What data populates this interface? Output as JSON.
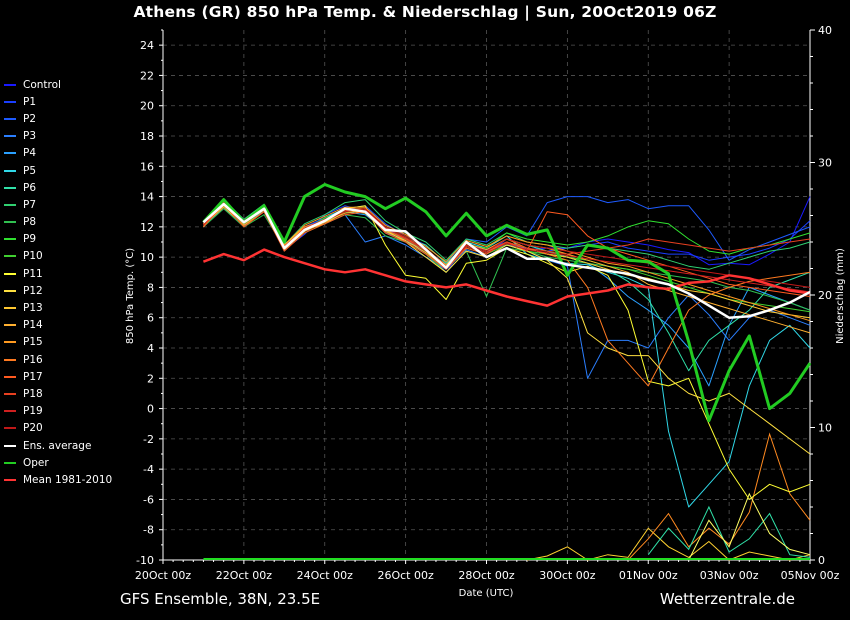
{
  "title": "Athens  (GR)  850 hPa Temp. & Niederschlag | Sun, 20Oct2019 06Z",
  "footer": {
    "left": "GFS Ensemble, 38N, 23.5E",
    "right": "Wetterzentrale.de"
  },
  "colors": {
    "background": "#000000",
    "grid": "#555555",
    "members": [
      "#1a1aff",
      "#1a3fff",
      "#1e5bff",
      "#2b7fff",
      "#2aa0ff",
      "#30d8e8",
      "#30e0a8",
      "#30d070",
      "#30c050",
      "#30e030",
      "#40d030",
      "#ffff33",
      "#ffe040",
      "#ffc830",
      "#ffb030",
      "#ff9a20",
      "#ff7a20",
      "#ff5a20",
      "#e84020",
      "#d02020",
      "#c01818"
    ],
    "ens_average": "#ffffff",
    "oper": "#22cc22",
    "mean_1981_2010": "#ff3333"
  },
  "legend": [
    {
      "label": "Control",
      "color": "#1a1aff"
    },
    {
      "label": "P1",
      "color": "#1a3fff"
    },
    {
      "label": "P2",
      "color": "#1e5bff"
    },
    {
      "label": "P3",
      "color": "#2b7fff"
    },
    {
      "label": "P4",
      "color": "#2aa0ff"
    },
    {
      "label": "P5",
      "color": "#30d8e8"
    },
    {
      "label": "P6",
      "color": "#30e0a8"
    },
    {
      "label": "P7",
      "color": "#30d070"
    },
    {
      "label": "P8",
      "color": "#30c050"
    },
    {
      "label": "P9",
      "color": "#30e030"
    },
    {
      "label": "P10",
      "color": "#40d030"
    },
    {
      "label": "P11",
      "color": "#ffff33"
    },
    {
      "label": "P12",
      "color": "#ffe040"
    },
    {
      "label": "P13",
      "color": "#ffc830"
    },
    {
      "label": "P14",
      "color": "#ffb030"
    },
    {
      "label": "P15",
      "color": "#ff9a20"
    },
    {
      "label": "P16",
      "color": "#ff7a20"
    },
    {
      "label": "P17",
      "color": "#ff5a20"
    },
    {
      "label": "P18",
      "color": "#e84020"
    },
    {
      "label": "P19",
      "color": "#d02020"
    },
    {
      "label": "P20",
      "color": "#c01818"
    },
    {
      "label": "Ens. average",
      "color": "#ffffff"
    },
    {
      "label": "Oper",
      "color": "#22cc22"
    },
    {
      "label": "Mean 1981-2010",
      "color": "#ff3333"
    }
  ],
  "chart_data": {
    "type": "line",
    "xlabel": "Date (UTC)",
    "ylabel": "850 hPa Temp. (°C)",
    "y2label": "Niederschlag (mm)",
    "x_unit": "days since 20Oct 00z",
    "x_ticks": [
      "20Oct 00z",
      "22Oct 00z",
      "24Oct 00z",
      "26Oct 00z",
      "28Oct 00z",
      "30Oct 00z",
      "01Nov 00z",
      "03Nov 00z",
      "05Nov 00z"
    ],
    "xlim": [
      0,
      16
    ],
    "ylim": [
      -10,
      25
    ],
    "y_ticks": [
      -10,
      -8,
      -6,
      -4,
      -2,
      0,
      2,
      4,
      6,
      8,
      10,
      12,
      14,
      16,
      18,
      20,
      22,
      24
    ],
    "y2lim": [
      0,
      40
    ],
    "y2_ticks": [
      0,
      10,
      20,
      30,
      40
    ],
    "grid": true,
    "legend_position": "left",
    "ens_average": {
      "x": [
        1.0,
        1.5,
        2.0,
        2.5,
        3.0,
        3.5,
        4.0,
        4.5,
        5.0,
        5.5,
        6.0,
        6.5,
        7.0,
        7.5,
        8.0,
        8.5,
        9.0,
        9.5,
        10.0,
        10.5,
        11.0,
        11.5,
        12.0,
        12.5,
        13.0,
        13.5,
        14.0,
        14.5,
        15.0,
        15.5,
        16.0
      ],
      "y": [
        12.3,
        13.5,
        12.3,
        13.2,
        10.6,
        11.8,
        12.4,
        13.2,
        13.0,
        11.8,
        11.7,
        10.5,
        9.3,
        11.0,
        10.0,
        10.6,
        9.9,
        9.9,
        9.5,
        9.3,
        9.1,
        8.9,
        8.5,
        8.2,
        7.6,
        6.8,
        6.0,
        6.1,
        6.5,
        7.0,
        7.7
      ]
    },
    "oper": {
      "x": [
        1.0,
        1.5,
        2.0,
        2.5,
        3.0,
        3.5,
        4.0,
        4.5,
        5.0,
        5.5,
        6.0,
        6.5,
        7.0,
        7.5,
        8.0,
        8.5,
        9.0,
        9.5,
        10.0,
        10.5,
        11.0,
        11.5,
        12.0,
        12.5,
        13.0,
        13.5,
        14.0,
        14.5,
        15.0,
        15.5,
        16.0
      ],
      "y": [
        12.3,
        13.8,
        12.3,
        13.4,
        11.0,
        14.0,
        14.8,
        14.3,
        14.0,
        13.2,
        13.9,
        13.0,
        11.4,
        12.9,
        11.4,
        12.1,
        11.5,
        11.8,
        8.8,
        10.8,
        10.6,
        9.8,
        9.7,
        8.9,
        4.4,
        -0.8,
        2.5,
        4.8,
        0.0,
        1.0,
        3.0
      ]
    },
    "mean_1981_2010": {
      "x": [
        1.0,
        1.5,
        2.0,
        2.5,
        3.0,
        3.5,
        4.0,
        4.5,
        5.0,
        5.5,
        6.0,
        6.5,
        7.0,
        7.5,
        8.0,
        8.5,
        9.0,
        9.5,
        10.0,
        10.5,
        11.0,
        11.5,
        12.0,
        12.5,
        13.0,
        13.5,
        14.0,
        14.5,
        15.0,
        15.5,
        16.0
      ],
      "y": [
        9.7,
        10.2,
        9.8,
        10.5,
        10.0,
        9.6,
        9.2,
        9.0,
        9.2,
        8.8,
        8.4,
        8.2,
        8.0,
        8.2,
        7.8,
        7.4,
        7.1,
        6.8,
        7.4,
        7.6,
        7.8,
        8.2,
        8.0,
        7.9,
        8.3,
        8.4,
        8.8,
        8.6,
        8.2,
        7.8,
        7.6
      ]
    },
    "members": [
      {
        "name": "Control",
        "y": [
          12.2,
          13.5,
          12.2,
          13.0,
          10.8,
          12.0,
          12.5,
          13.0,
          13.2,
          12.0,
          11.0,
          10.5,
          9.0,
          10.8,
          10.5,
          11.0,
          10.5,
          10.6,
          10.6,
          11.0,
          11.2,
          11.0,
          10.8,
          10.5,
          10.3,
          9.5,
          9.6,
          9.5,
          10.2,
          11.0,
          14.0
        ]
      },
      {
        "name": "P1",
        "y": [
          12.0,
          13.4,
          12.0,
          13.2,
          10.5,
          11.5,
          12.8,
          13.4,
          13.0,
          11.6,
          11.2,
          10.2,
          9.2,
          10.6,
          10.2,
          11.2,
          10.8,
          10.4,
          10.6,
          10.8,
          11.0,
          10.6,
          10.4,
          10.2,
          10.2,
          9.8,
          10.0,
          10.2,
          10.6,
          11.2,
          12.4
        ]
      },
      {
        "name": "P2",
        "y": [
          12.3,
          13.6,
          12.4,
          13.1,
          10.7,
          12.0,
          12.6,
          13.2,
          13.4,
          12.2,
          11.4,
          10.8,
          9.6,
          11.2,
          11.0,
          12.0,
          11.4,
          13.6,
          14.0,
          14.0,
          13.6,
          13.8,
          13.2,
          13.4,
          13.4,
          11.8,
          9.8,
          10.5,
          11.0,
          11.5,
          12.0
        ]
      },
      {
        "name": "P3",
        "y": [
          12.1,
          13.2,
          12.2,
          13.0,
          10.6,
          11.8,
          12.2,
          12.8,
          11.0,
          11.4,
          10.8,
          10.0,
          9.2,
          10.5,
          10.0,
          10.8,
          10.4,
          9.8,
          9.4,
          2.0,
          4.5,
          4.5,
          4.0,
          6.0,
          7.5,
          6.2,
          4.5,
          6.0,
          6.5,
          6.0,
          5.5
        ]
      },
      {
        "name": "P4",
        "y": [
          12.0,
          13.5,
          12.1,
          13.3,
          10.4,
          11.9,
          12.4,
          13.0,
          12.8,
          11.8,
          11.2,
          10.4,
          9.4,
          10.8,
          10.4,
          10.8,
          10.6,
          10.2,
          10.0,
          9.6,
          8.6,
          7.4,
          6.5,
          5.5,
          4.0,
          1.5,
          5.5,
          8.0,
          7.5,
          7.0,
          6.5
        ]
      },
      {
        "name": "P5",
        "y": [
          12.2,
          13.7,
          12.3,
          13.4,
          10.9,
          11.7,
          12.6,
          13.2,
          13.0,
          11.6,
          11.0,
          10.5,
          9.5,
          11.0,
          10.6,
          11.4,
          10.2,
          9.8,
          9.6,
          9.5,
          9.0,
          8.6,
          8.0,
          -1.5,
          -6.5,
          -5.0,
          -3.5,
          1.5,
          4.5,
          5.5,
          4.0
        ]
      },
      {
        "name": "P6",
        "y": [
          12.3,
          13.5,
          12.2,
          13.1,
          10.6,
          11.9,
          12.3,
          13.0,
          13.2,
          12.0,
          11.2,
          10.8,
          9.6,
          10.8,
          10.4,
          11.2,
          10.8,
          10.4,
          10.0,
          9.6,
          9.2,
          8.4,
          7.2,
          5.0,
          2.5,
          4.5,
          5.5,
          6.5,
          8.0,
          8.5,
          9.0
        ]
      },
      {
        "name": "P7",
        "y": [
          12.4,
          13.8,
          12.5,
          13.5,
          10.8,
          12.2,
          12.8,
          13.6,
          13.8,
          12.4,
          11.6,
          11.0,
          9.8,
          11.2,
          10.8,
          11.6,
          11.0,
          10.8,
          10.6,
          10.8,
          10.6,
          10.4,
          10.2,
          9.8,
          9.4,
          9.2,
          9.6,
          10.0,
          10.4,
          10.6,
          11.0
        ]
      },
      {
        "name": "P8",
        "y": [
          12.0,
          13.2,
          12.0,
          12.8,
          10.6,
          11.6,
          12.2,
          12.8,
          12.6,
          11.4,
          11.0,
          10.2,
          9.0,
          10.4,
          7.4,
          10.6,
          10.4,
          10.0,
          9.8,
          9.6,
          9.4,
          9.2,
          9.0,
          8.8,
          8.6,
          8.4,
          8.0,
          7.8,
          7.4,
          7.0,
          6.5
        ]
      },
      {
        "name": "P9",
        "y": [
          12.2,
          13.6,
          12.4,
          13.3,
          10.7,
          11.8,
          12.6,
          13.0,
          13.0,
          12.0,
          11.4,
          10.6,
          9.4,
          10.8,
          10.6,
          11.6,
          11.2,
          11.0,
          10.8,
          11.0,
          11.4,
          12.0,
          12.4,
          12.2,
          11.2,
          10.4,
          10.2,
          10.6,
          10.8,
          11.2,
          11.6
        ]
      },
      {
        "name": "P10",
        "y": [
          12.1,
          13.4,
          12.1,
          13.2,
          10.6,
          11.8,
          12.4,
          13.0,
          13.0,
          11.8,
          11.2,
          10.4,
          9.2,
          10.6,
          10.2,
          10.8,
          10.4,
          10.2,
          10.0,
          9.8,
          9.4,
          9.2,
          8.8,
          8.4,
          8.0,
          7.6,
          7.2,
          7.0,
          6.8,
          6.6,
          6.4
        ]
      },
      {
        "name": "P11",
        "y": [
          12.3,
          13.5,
          12.3,
          13.4,
          10.8,
          12.0,
          12.4,
          13.2,
          13.4,
          10.8,
          8.8,
          8.6,
          7.2,
          9.6,
          9.8,
          10.6,
          10.2,
          9.6,
          9.0,
          9.4,
          8.8,
          6.5,
          1.8,
          1.5,
          2.0,
          -1.0,
          -4.0,
          -6.0,
          -5.0,
          -5.5,
          -5.0
        ]
      },
      {
        "name": "P12",
        "y": [
          12.0,
          13.6,
          12.2,
          13.2,
          10.6,
          11.8,
          12.2,
          13.0,
          13.2,
          11.8,
          11.0,
          10.0,
          9.0,
          10.4,
          10.0,
          10.8,
          10.4,
          9.8,
          8.6,
          5.0,
          4.0,
          3.5,
          3.5,
          2.0,
          1.0,
          0.5,
          1.0,
          0.0,
          -1.0,
          -2.0,
          -3.0
        ]
      },
      {
        "name": "P13",
        "y": [
          12.2,
          13.4,
          12.4,
          13.3,
          10.7,
          11.9,
          12.5,
          13.1,
          12.9,
          11.7,
          11.1,
          10.3,
          9.3,
          10.7,
          10.3,
          11.0,
          10.6,
          10.2,
          10.0,
          9.6,
          9.2,
          8.8,
          8.6,
          8.2,
          7.8,
          7.6,
          7.2,
          6.8,
          6.4,
          6.2,
          6.0
        ]
      },
      {
        "name": "P14",
        "y": [
          12.1,
          13.3,
          12.1,
          13.0,
          10.5,
          11.7,
          12.3,
          12.9,
          13.1,
          11.9,
          11.3,
          10.5,
          9.5,
          10.9,
          10.5,
          11.2,
          10.8,
          10.6,
          10.2,
          9.8,
          9.4,
          9.0,
          8.2,
          7.8,
          7.4,
          7.0,
          6.6,
          6.2,
          5.8,
          5.4,
          5.0
        ]
      },
      {
        "name": "P15",
        "y": [
          12.3,
          13.7,
          12.3,
          13.1,
          10.8,
          12.1,
          12.7,
          13.3,
          13.3,
          12.1,
          11.5,
          10.7,
          9.7,
          11.1,
          10.7,
          11.4,
          11.0,
          10.8,
          10.4,
          10.0,
          9.6,
          9.4,
          9.0,
          8.6,
          8.2,
          7.8,
          7.4,
          7.0,
          6.6,
          6.2,
          5.8
        ]
      },
      {
        "name": "P16",
        "y": [
          12.2,
          13.6,
          12.4,
          13.4,
          10.6,
          12.0,
          12.4,
          13.2,
          13.2,
          11.8,
          11.2,
          10.6,
          9.4,
          10.8,
          10.4,
          11.2,
          10.6,
          10.2,
          9.8,
          8.0,
          4.5,
          3.0,
          1.5,
          4.0,
          6.5,
          7.5,
          8.0,
          8.4,
          8.6,
          8.8,
          9.0
        ]
      },
      {
        "name": "P17",
        "y": [
          12.0,
          13.5,
          12.0,
          13.0,
          10.4,
          11.6,
          12.2,
          12.8,
          13.0,
          11.6,
          11.0,
          10.2,
          9.2,
          10.6,
          10.2,
          11.0,
          10.4,
          13.0,
          12.8,
          11.4,
          10.6,
          10.2,
          9.8,
          9.4,
          9.0,
          8.6,
          8.2,
          8.0,
          7.8,
          7.6,
          7.4
        ]
      },
      {
        "name": "P18",
        "y": [
          12.2,
          13.5,
          12.2,
          13.2,
          10.6,
          11.8,
          12.4,
          13.0,
          13.2,
          12.0,
          11.2,
          10.4,
          9.4,
          10.8,
          10.4,
          11.0,
          10.6,
          10.4,
          10.2,
          10.4,
          10.6,
          10.8,
          11.2,
          11.0,
          10.8,
          10.6,
          10.4,
          10.6,
          10.8,
          11.0,
          11.2
        ]
      },
      {
        "name": "P19",
        "y": [
          12.1,
          13.6,
          12.3,
          13.3,
          10.7,
          11.9,
          12.5,
          13.1,
          13.1,
          11.9,
          11.3,
          10.5,
          9.3,
          10.7,
          10.3,
          10.9,
          10.5,
          10.3,
          10.1,
          9.9,
          9.7,
          9.5,
          9.3,
          9.1,
          8.9,
          8.7,
          8.5,
          8.3,
          8.1,
          7.9,
          7.7
        ]
      },
      {
        "name": "P20",
        "y": [
          12.3,
          13.5,
          12.3,
          13.2,
          10.6,
          11.8,
          12.4,
          13.0,
          13.2,
          12.0,
          11.4,
          10.6,
          9.4,
          10.8,
          10.4,
          11.2,
          10.8,
          10.6,
          10.4,
          10.2,
          10.0,
          9.8,
          9.6,
          9.4,
          9.2,
          9.0,
          8.8,
          8.6,
          8.4,
          8.2,
          8.0
        ]
      }
    ],
    "precipitation_note": "Niederschlag (mm) shown as spikes along bottom axis",
    "precipitation_members": [
      {
        "x": [
          9.0,
          9.5,
          10.0,
          10.5,
          11.0,
          11.5,
          12.0,
          12.5,
          13.0,
          13.5,
          14.0,
          14.5,
          15.0,
          15.5,
          16.0
        ],
        "y": [
          0,
          0.3,
          1.0,
          0,
          0.4,
          0.2,
          2.4,
          1.0,
          0.2,
          1.4,
          0,
          0.6,
          0.3,
          0.0,
          0.4
        ]
      },
      {
        "x": [
          11.5,
          12.0,
          12.5,
          13.0,
          13.5,
          14.0,
          14.5,
          15.0,
          15.5,
          16.0
        ],
        "y": [
          0,
          1.6,
          3.5,
          1.0,
          2.4,
          1.2,
          3.6,
          9.5,
          5.0,
          3.0
        ]
      },
      {
        "x": [
          12.0,
          12.5,
          13.0,
          13.5,
          14.0,
          14.5,
          15.0,
          15.5,
          16.0
        ],
        "y": [
          0.4,
          2.4,
          0.8,
          4.0,
          0.6,
          1.6,
          3.5,
          0.4,
          0.2
        ]
      },
      {
        "x": [
          13.0,
          13.5,
          14.0,
          14.5,
          15.0,
          15.5,
          16.0
        ],
        "y": [
          0,
          3.0,
          1.0,
          5.0,
          2.0,
          0.8,
          0.4
        ]
      }
    ]
  }
}
